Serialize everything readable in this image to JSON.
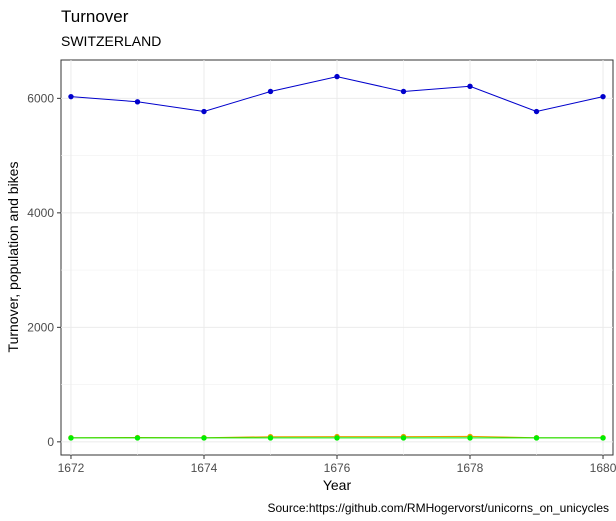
{
  "chart_data": {
    "type": "line",
    "title": "Turnover",
    "subtitle": "SWITZERLAND",
    "xlabel": "Year",
    "ylabel": "Turnover, population and bikes",
    "caption": "Source:https://github.com/RMHogervorst/unicorns_on_unicycles",
    "x": [
      1672,
      1673,
      1674,
      1675,
      1676,
      1677,
      1678,
      1679,
      1680
    ],
    "xticks": [
      1672,
      1674,
      1676,
      1678,
      1680
    ],
    "yticks": [
      0,
      2000,
      4000,
      6000
    ],
    "xlim": [
      1671.85,
      1680.15
    ],
    "ylim": [
      -230,
      6670
    ],
    "grid": true,
    "series": [
      {
        "color": "#0000cc",
        "values": [
          6030,
          5940,
          5770,
          6120,
          6380,
          6120,
          6210,
          5770,
          6030
        ]
      },
      {
        "color": "#e69f00",
        "values": [
          72,
          75,
          72,
          90,
          92,
          92,
          95,
          72,
          72
        ]
      },
      {
        "color": "#00ee00",
        "values": [
          68,
          68,
          68,
          68,
          68,
          68,
          68,
          68,
          68
        ]
      }
    ]
  }
}
